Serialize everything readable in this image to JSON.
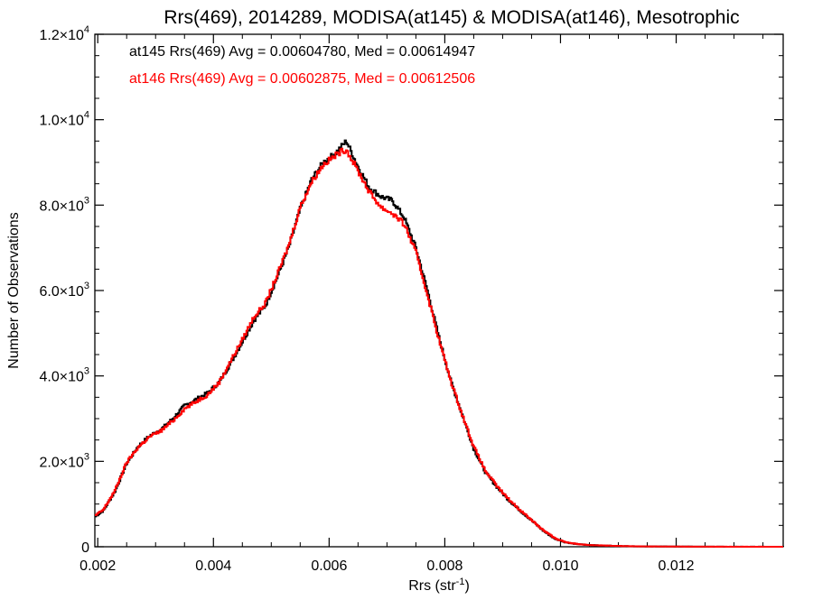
{
  "chart_data": {
    "type": "line",
    "step": true,
    "title": "Rrs(469), 2014289, MODISA(at145) & MODISA(at146), Mesotrophic",
    "xlabel": "Rrs (str",
    "xlabel_sup": "-1",
    "xlabel_suffix": ")",
    "ylabel": "Number of Observations",
    "xlim": [
      0.00195,
      0.01385
    ],
    "ylim": [
      0,
      12000
    ],
    "x_ticks": [
      0.002,
      0.004,
      0.006,
      0.008,
      0.01,
      0.012
    ],
    "x_tick_labels": [
      "0.002",
      "0.004",
      "0.006",
      "0.008",
      "0.010",
      "0.012"
    ],
    "y_ticks": [
      0,
      2000,
      4000,
      6000,
      8000,
      10000,
      12000
    ],
    "y_tick_labels": [
      {
        "mant": "0",
        "exp": ""
      },
      {
        "mant": "2.0×10",
        "exp": "3"
      },
      {
        "mant": "4.0×10",
        "exp": "3"
      },
      {
        "mant": "6.0×10",
        "exp": "3"
      },
      {
        "mant": "8.0×10",
        "exp": "3"
      },
      {
        "mant": "1.0×10",
        "exp": "4"
      },
      {
        "mant": "1.2×10",
        "exp": "4"
      }
    ],
    "grid": false,
    "legend": [
      {
        "text": "at145 Rrs(469) Avg = 0.00604780, Med = 0.00614947",
        "color": "#000000"
      },
      {
        "text": "at146 Rrs(469) Avg = 0.00602875, Med = 0.00612506",
        "color": "#ff0000"
      }
    ],
    "x": [
      0.00195,
      0.0021,
      0.0023,
      0.0025,
      0.0027,
      0.0029,
      0.0031,
      0.0033,
      0.0035,
      0.0037,
      0.0039,
      0.0041,
      0.0043,
      0.0045,
      0.0047,
      0.0049,
      0.0051,
      0.0053,
      0.0055,
      0.0057,
      0.0059,
      0.0061,
      0.0062,
      0.0063,
      0.0065,
      0.0067,
      0.0069,
      0.0071,
      0.0073,
      0.0075,
      0.0077,
      0.0079,
      0.0081,
      0.0083,
      0.0085,
      0.0087,
      0.0089,
      0.0091,
      0.0093,
      0.0095,
      0.0097,
      0.0099,
      0.0101,
      0.0103,
      0.0105,
      0.0107,
      0.0109,
      0.0111,
      0.0113,
      0.0115,
      0.0117,
      0.0119,
      0.0121,
      0.0123,
      0.0125,
      0.0127,
      0.0129,
      0.0131,
      0.0133,
      0.0135,
      0.0137,
      0.01385
    ],
    "series": [
      {
        "name": "at145",
        "color": "#000000",
        "values": [
          700,
          850,
          1300,
          1950,
          2350,
          2600,
          2750,
          3000,
          3300,
          3450,
          3600,
          3850,
          4300,
          4800,
          5300,
          5650,
          6300,
          7000,
          7900,
          8600,
          9000,
          9200,
          9350,
          9500,
          8900,
          8400,
          8200,
          8100,
          7700,
          7000,
          6000,
          4900,
          3900,
          3100,
          2300,
          1750,
          1400,
          1100,
          850,
          620,
          380,
          190,
          100,
          60,
          40,
          30,
          20,
          15,
          10,
          8,
          6,
          5,
          4,
          3,
          2,
          2,
          1,
          1,
          1,
          1,
          0,
          0
        ]
      },
      {
        "name": "at146",
        "color": "#ff0000",
        "values": [
          720,
          870,
          1320,
          1970,
          2330,
          2580,
          2720,
          2950,
          3230,
          3400,
          3560,
          3850,
          4350,
          4850,
          5380,
          5700,
          6350,
          7050,
          7950,
          8550,
          8950,
          9150,
          9250,
          9300,
          8800,
          8300,
          7950,
          7800,
          7550,
          6900,
          5900,
          4850,
          3900,
          3100,
          2350,
          1780,
          1420,
          1120,
          860,
          630,
          390,
          200,
          105,
          62,
          42,
          31,
          21,
          15,
          10,
          8,
          6,
          5,
          4,
          3,
          2,
          2,
          1,
          1,
          1,
          1,
          0,
          0
        ]
      }
    ]
  }
}
